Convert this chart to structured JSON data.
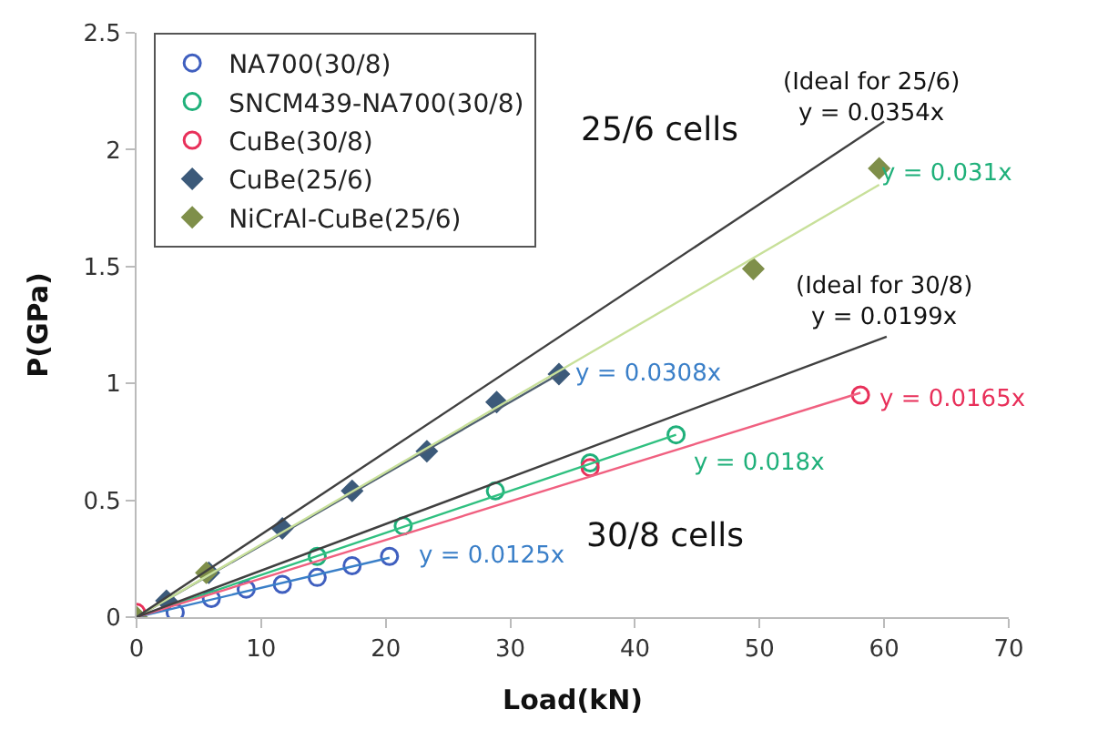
{
  "chart_data": {
    "type": "scatter",
    "xlabel": "Load(kN)",
    "ylabel": "P(GPa)",
    "xlim": [
      0,
      70
    ],
    "ylim": [
      0,
      2.5
    ],
    "xticks": [
      0,
      10,
      20,
      30,
      40,
      50,
      60,
      70
    ],
    "yticks": [
      0,
      0.5,
      1,
      1.5,
      2,
      2.5
    ],
    "legend": "top left",
    "series": [
      {
        "name": "NA700(30/8)",
        "color": "#3f5fbf",
        "marker": "circle",
        "x": [
          3.1,
          6.0,
          8.8,
          11.7,
          14.5,
          17.3,
          20.3
        ],
        "values": [
          0.02,
          0.08,
          0.12,
          0.14,
          0.17,
          0.22,
          0.26
        ]
      },
      {
        "name": "SNCM439-NA700(30/8)",
        "color": "#1fb07a",
        "marker": "circle",
        "x": [
          14.5,
          21.4,
          28.8,
          36.4,
          43.3
        ],
        "values": [
          0.26,
          0.39,
          0.54,
          0.66,
          0.78
        ]
      },
      {
        "name": "CuBe(30/8)",
        "color": "#e8305a",
        "marker": "circle",
        "x": [
          0,
          36.4,
          58.1
        ],
        "values": [
          0.02,
          0.64,
          0.95
        ]
      },
      {
        "name": "CuBe(25/6)",
        "color": "#3c5a7a",
        "marker": "diamond",
        "x": [
          2.4,
          5.8,
          11.7,
          17.3,
          23.3,
          28.9,
          33.9
        ],
        "values": [
          0.07,
          0.19,
          0.38,
          0.54,
          0.71,
          0.92,
          1.04
        ]
      },
      {
        "name": "NiCrAl-CuBe(25/6)",
        "color": "#7f8f4a",
        "marker": "diamond",
        "x": [
          0,
          5.6,
          49.5,
          59.6
        ],
        "values": [
          0,
          0.19,
          1.49,
          1.92
        ]
      },
      {
        "type": "line",
        "color": "#3a7fc8",
        "x": [
          0,
          20.3
        ],
        "values": [
          0,
          0.254
        ]
      },
      {
        "type": "line",
        "color": "#30c080",
        "x": [
          0,
          43.3
        ],
        "values": [
          0,
          0.78
        ]
      },
      {
        "type": "line",
        "color": "#f06080",
        "x": [
          0,
          58.1
        ],
        "values": [
          0,
          0.96
        ]
      },
      {
        "type": "line",
        "color": "#506070",
        "x": [
          0,
          33.9
        ],
        "values": [
          0,
          1.04
        ]
      },
      {
        "type": "line",
        "color": "#c8e09a",
        "x": [
          0,
          59.6
        ],
        "values": [
          0,
          1.85
        ]
      },
      {
        "type": "line",
        "color": "#404040",
        "x": [
          0,
          60
        ],
        "values": [
          0,
          2.12
        ]
      },
      {
        "type": "line",
        "color": "#404040",
        "x": [
          0,
          60.2
        ],
        "values": [
          0,
          1.2
        ]
      }
    ],
    "annotations": [
      "25/6 cells",
      "30/8 cells",
      "(Ideal for 25/6)\ny = 0.0354x",
      "(Ideal for 30/8)\ny = 0.0199x",
      "y = 0.031x",
      "y = 0.0308x",
      "y = 0.0165x",
      "y = 0.018x",
      "y = 0.0125x"
    ]
  }
}
